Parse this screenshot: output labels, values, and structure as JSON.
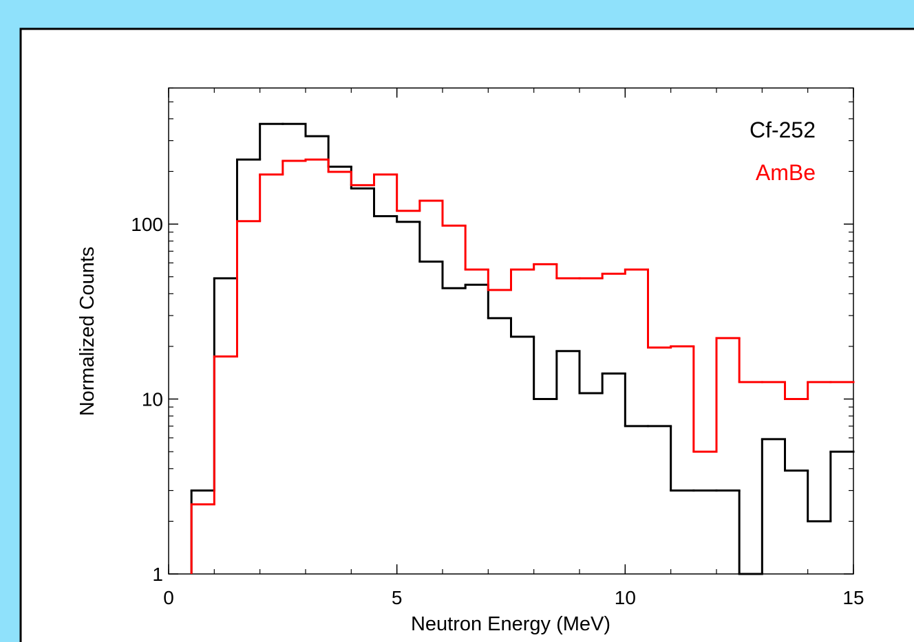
{
  "chart_data": {
    "type": "histogram",
    "x_label": "Neutron Energy (MeV)",
    "y_label": "Normalized Counts",
    "bins": [
      0.5,
      1,
      1.5,
      2,
      2.5,
      3,
      3.5,
      4,
      4.5,
      5,
      5.5,
      6,
      6.5,
      7,
      7.5,
      8,
      8.5,
      9,
      9.5,
      10,
      10.5,
      11,
      11.5,
      12,
      12.5,
      13,
      13.5,
      14,
      14.5,
      15
    ],
    "series": [
      {
        "name": "Cf-252",
        "color": "#000000",
        "values": [
          3,
          49,
          234,
          374,
          374,
          318,
          213,
          160,
          111,
          103,
          61,
          43,
          45,
          29,
          22.7,
          10,
          18.8,
          10.8,
          14,
          7,
          7,
          3,
          3,
          3,
          1,
          5.9,
          3.9,
          2,
          5
        ]
      },
      {
        "name": "AmBe",
        "color": "#ff0000",
        "values": [
          2.5,
          17.5,
          104,
          192,
          230,
          234,
          199,
          167,
          192,
          119,
          136,
          98,
          55,
          42,
          55,
          59,
          49,
          49,
          52,
          55,
          19.7,
          20,
          5,
          22.3,
          12.5,
          12.5,
          10,
          12.5,
          12.5
        ]
      }
    ],
    "xlim": [
      0,
      15
    ],
    "xticks": [
      0,
      5,
      10,
      15
    ],
    "ylim": [
      1,
      600
    ],
    "yticks": [
      1,
      10,
      100
    ],
    "y_log": true,
    "legend": "upper right"
  }
}
